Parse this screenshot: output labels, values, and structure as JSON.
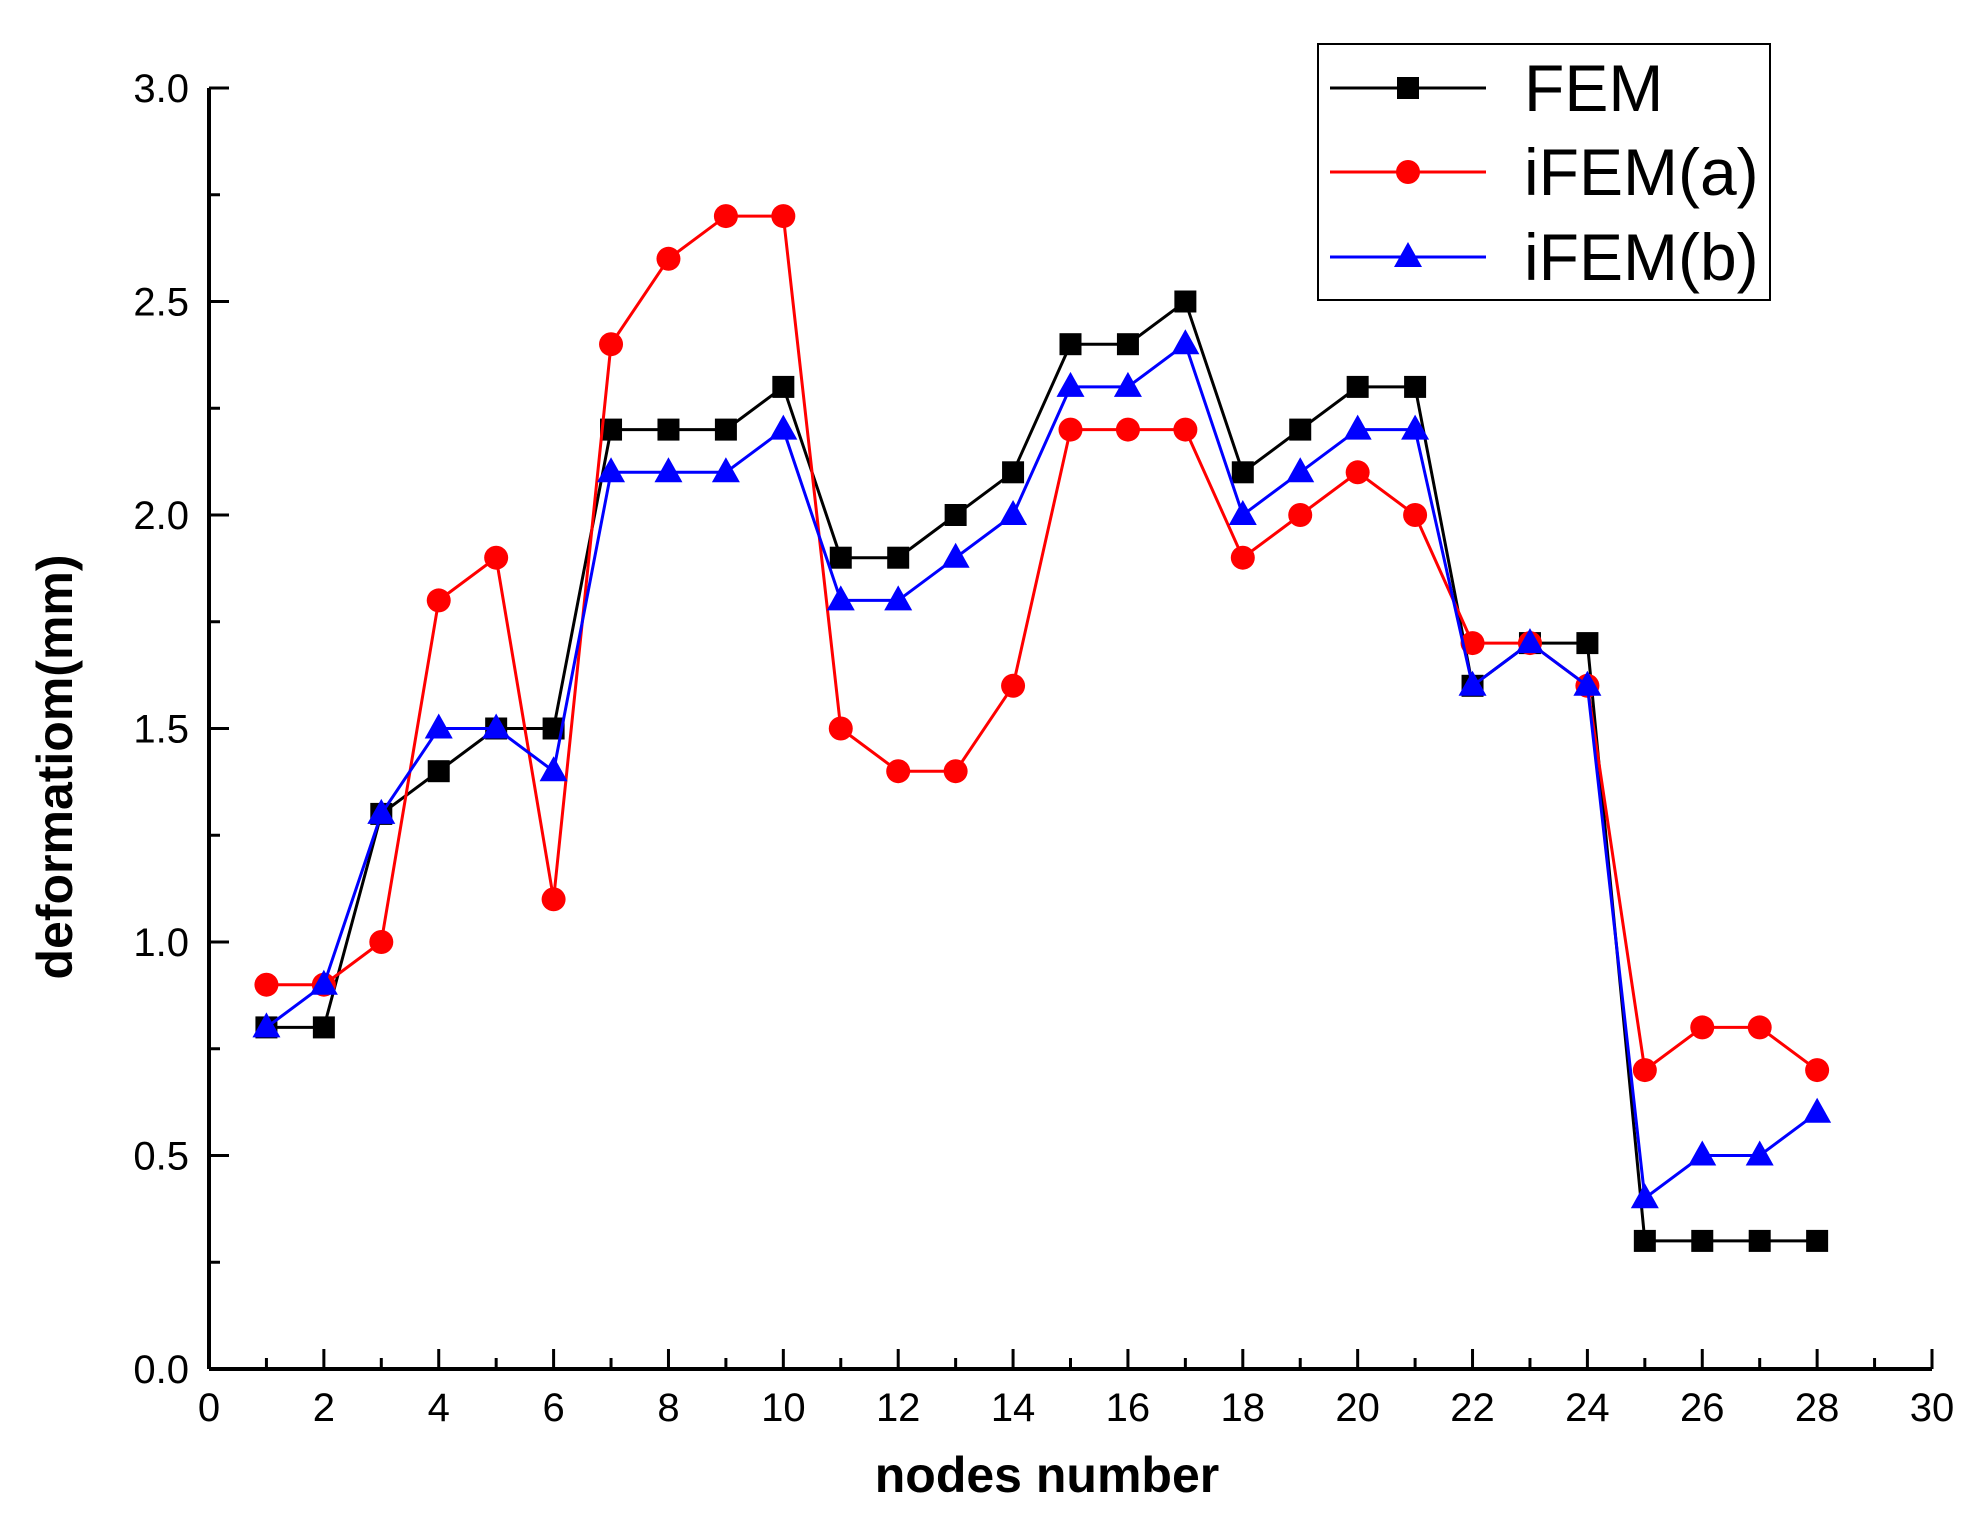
{
  "chart_data": {
    "type": "line",
    "title": "",
    "xlabel": "nodes number",
    "ylabel": "deformatiom(mm)",
    "xlim": [
      0,
      30
    ],
    "ylim": [
      0.0,
      3.0
    ],
    "x_ticks": [
      "0",
      "2",
      "4",
      "6",
      "8",
      "10",
      "12",
      "14",
      "16",
      "18",
      "20",
      "22",
      "24",
      "26",
      "28",
      "30"
    ],
    "y_ticks": [
      "0.0",
      "0.5",
      "1.0",
      "1.5",
      "2.0",
      "2.5",
      "3.0"
    ],
    "grid": false,
    "legend_position": "top-right",
    "x": [
      1,
      2,
      3,
      4,
      5,
      6,
      7,
      8,
      9,
      10,
      11,
      12,
      13,
      14,
      15,
      16,
      17,
      18,
      19,
      20,
      21,
      22,
      23,
      24,
      25,
      26,
      27,
      28
    ],
    "series": [
      {
        "name": "FEM",
        "color": "#000000",
        "marker": "square",
        "values": [
          0.8,
          0.8,
          1.3,
          1.4,
          1.5,
          1.5,
          2.2,
          2.2,
          2.2,
          2.3,
          1.9,
          1.9,
          2.0,
          2.1,
          2.4,
          2.4,
          2.5,
          2.1,
          2.2,
          2.3,
          2.3,
          1.6,
          1.7,
          1.7,
          0.3,
          0.3,
          0.3,
          0.3
        ]
      },
      {
        "name": "iFEM(a)",
        "color": "#ff0000",
        "marker": "circle",
        "values": [
          0.9,
          0.9,
          1.0,
          1.8,
          1.9,
          1.1,
          2.4,
          2.6,
          2.7,
          2.7,
          1.5,
          1.4,
          1.4,
          1.6,
          2.2,
          2.2,
          2.2,
          1.9,
          2.0,
          2.1,
          2.0,
          1.7,
          1.7,
          1.6,
          0.7,
          0.8,
          0.8,
          0.7
        ]
      },
      {
        "name": "iFEM(b)",
        "color": "#0000ff",
        "marker": "triangle",
        "values": [
          0.8,
          0.9,
          1.3,
          1.5,
          1.5,
          1.4,
          2.1,
          2.1,
          2.1,
          2.2,
          1.8,
          1.8,
          1.9,
          2.0,
          2.3,
          2.3,
          2.4,
          2.0,
          2.1,
          2.2,
          2.2,
          1.6,
          1.7,
          1.6,
          0.4,
          0.5,
          0.5,
          0.6
        ]
      }
    ]
  }
}
